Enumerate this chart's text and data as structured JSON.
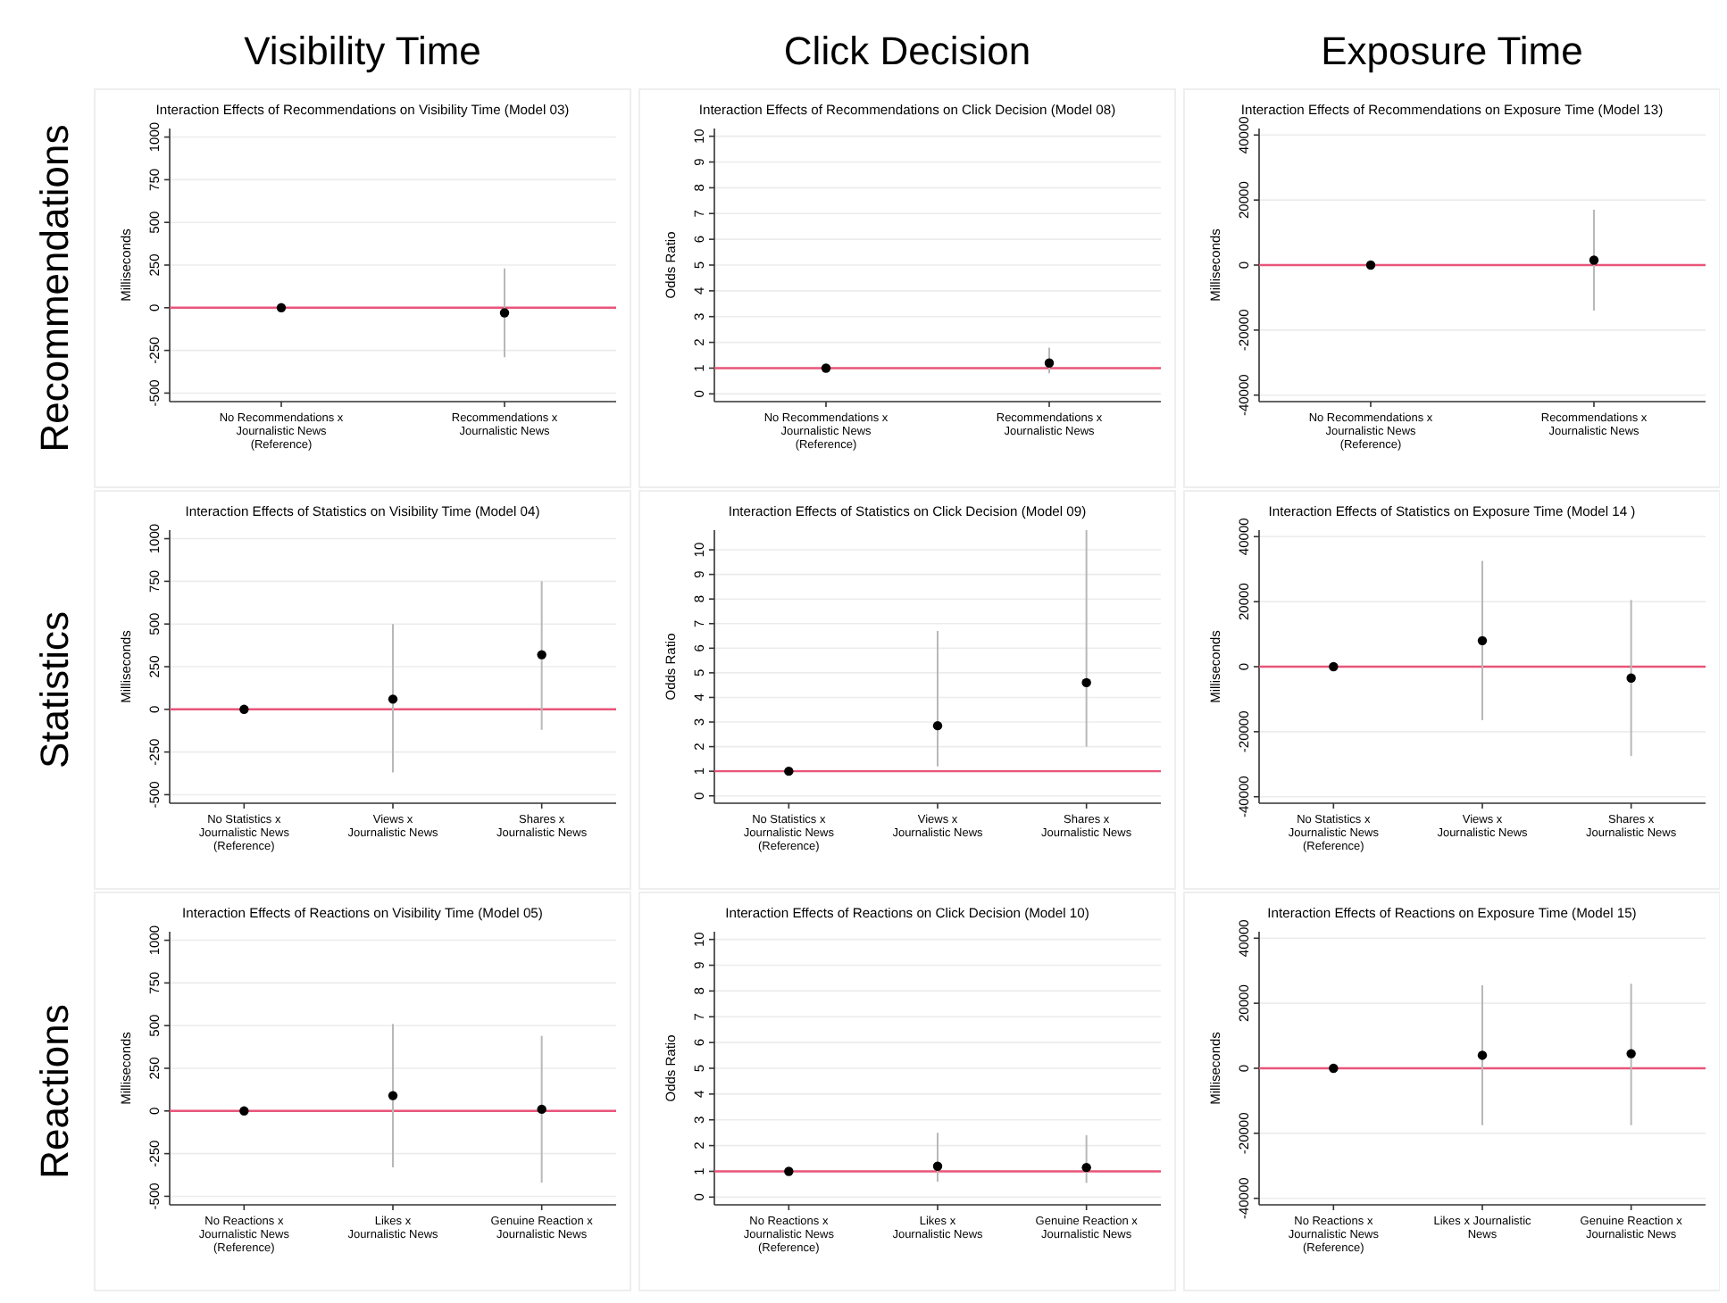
{
  "chart_data": [
    {
      "type": "other",
      "annotations": [
        "Visibility Time",
        "Click Decision",
        "Exposure Time",
        "Recommendations",
        "Statistics",
        "Reactions"
      ]
    },
    {
      "type": "scatter",
      "title": "Interaction Effects of Recommendations on Visibility Time (Model 03)",
      "ylabel": "Milliseconds",
      "categories": [
        "No Recommendations x\nJournalistic News\n(Reference)",
        "Recommendations x\nJournalistic News"
      ],
      "values": [
        0,
        -30
      ],
      "errors": [
        null,
        [
          -290,
          230
        ]
      ],
      "color": "#000000",
      "ylim": [
        -550,
        1050
      ],
      "yticks": [
        -500,
        -250,
        0,
        250,
        500,
        750,
        1000
      ],
      "grid": "y",
      "marker": "circle",
      "ref_lines": [
        {
          "axis": "y",
          "value": 0,
          "color": "#e8557a"
        }
      ]
    },
    {
      "type": "scatter",
      "title": "Interaction Effects of Recommendations on Click Decision (Model 08)",
      "ylabel": "Odds Ratio",
      "categories": [
        "No Recommendations x\nJournalistic News\n(Reference)",
        "Recommendations x\nJournalistic News"
      ],
      "values": [
        1,
        1.2
      ],
      "errors": [
        null,
        [
          0.8,
          1.8
        ]
      ],
      "color": "#000000",
      "ylim": [
        -0.3,
        10.3
      ],
      "yticks": [
        0,
        1,
        2,
        3,
        4,
        5,
        6,
        7,
        8,
        9,
        10
      ],
      "grid": "y",
      "marker": "circle",
      "ref_lines": [
        {
          "axis": "y",
          "value": 1,
          "color": "#e8557a"
        }
      ]
    },
    {
      "type": "scatter",
      "title": "Interaction Effects of Recommendations on Exposure Time (Model 13)",
      "ylabel": "Milliseconds",
      "categories": [
        "No Recommendations x\nJournalistic News\n(Reference)",
        "Recommendations x\nJournalistic News"
      ],
      "values": [
        0,
        1500
      ],
      "errors": [
        null,
        [
          -14000,
          17000
        ]
      ],
      "color": "#000000",
      "ylim": [
        -42000,
        42000
      ],
      "yticks": [
        -40000,
        -20000,
        0,
        20000,
        40000
      ],
      "grid": "y",
      "marker": "circle",
      "ref_lines": [
        {
          "axis": "y",
          "value": 0,
          "color": "#e8557a"
        }
      ]
    },
    {
      "type": "scatter",
      "title": "Interaction Effects of Statistics on Visibility Time (Model 04)",
      "ylabel": "Milliseconds",
      "categories": [
        "No Statistics x\nJournalistic News\n(Reference)",
        "Views x\nJournalistic News",
        "Shares x\nJournalistic News"
      ],
      "values": [
        0,
        60,
        320
      ],
      "errors": [
        null,
        [
          -370,
          500
        ],
        [
          -120,
          750
        ]
      ],
      "color": "#000000",
      "ylim": [
        -550,
        1050
      ],
      "yticks": [
        -500,
        -250,
        0,
        250,
        500,
        750,
        1000
      ],
      "grid": "y",
      "marker": "circle",
      "ref_lines": [
        {
          "axis": "y",
          "value": 0,
          "color": "#e8557a"
        }
      ]
    },
    {
      "type": "scatter",
      "title": "Interaction Effects of Statistics on Click Decision (Model 09)",
      "ylabel": "Odds Ratio",
      "categories": [
        "No Statistics x\nJournalistic News\n(Reference)",
        "Views x\nJournalistic News",
        "Shares x\nJournalistic News"
      ],
      "values": [
        1,
        2.85,
        4.6
      ],
      "errors": [
        null,
        [
          1.2,
          6.7
        ],
        [
          2.0,
          10.8
        ]
      ],
      "color": "#000000",
      "ylim": [
        -0.3,
        10.8
      ],
      "yticks": [
        0,
        1,
        2,
        3,
        4,
        5,
        6,
        7,
        8,
        9,
        10
      ],
      "grid": "y",
      "marker": "circle",
      "ref_lines": [
        {
          "axis": "y",
          "value": 1,
          "color": "#e8557a"
        }
      ]
    },
    {
      "type": "scatter",
      "title": "Interaction Effects of Statistics on Exposure Time (Model 14 )",
      "ylabel": "Milliseconds",
      "categories": [
        "No Statistics x\nJournalistic News\n(Reference)",
        "Views x\nJournalistic News",
        "Shares x\nJournalistic News"
      ],
      "values": [
        0,
        8000,
        -3500
      ],
      "errors": [
        null,
        [
          -16500,
          32500
        ],
        [
          -27500,
          20500
        ]
      ],
      "color": "#000000",
      "ylim": [
        -42000,
        42000
      ],
      "yticks": [
        -40000,
        -20000,
        0,
        20000,
        40000
      ],
      "grid": "y",
      "marker": "circle",
      "ref_lines": [
        {
          "axis": "y",
          "value": 0,
          "color": "#e8557a"
        }
      ]
    },
    {
      "type": "scatter",
      "title": "Interaction Effects of Reactions on Visibility Time (Model 05)",
      "ylabel": "Milliseconds",
      "categories": [
        "No Reactions x\nJournalistic News\n(Reference)",
        "Likes x\nJournalistic News",
        "Genuine Reaction x\nJournalistic News"
      ],
      "values": [
        0,
        90,
        10
      ],
      "errors": [
        null,
        [
          -330,
          510
        ],
        [
          -420,
          440
        ]
      ],
      "color": "#000000",
      "ylim": [
        -550,
        1050
      ],
      "yticks": [
        -500,
        -250,
        0,
        250,
        500,
        750,
        1000
      ],
      "grid": "y",
      "marker": "circle",
      "ref_lines": [
        {
          "axis": "y",
          "value": 0,
          "color": "#e8557a"
        }
      ]
    },
    {
      "type": "scatter",
      "title": "Interaction Effects of Reactions on Click Decision (Model 10)",
      "ylabel": "Odds Ratio",
      "categories": [
        "No Reactions x\nJournalistic News\n(Reference)",
        "Likes x\nJournalistic News",
        "Genuine Reaction x\nJournalistic News"
      ],
      "values": [
        1,
        1.2,
        1.15
      ],
      "errors": [
        null,
        [
          0.6,
          2.5
        ],
        [
          0.55,
          2.4
        ]
      ],
      "color": "#000000",
      "ylim": [
        -0.3,
        10.3
      ],
      "yticks": [
        0,
        1,
        2,
        3,
        4,
        5,
        6,
        7,
        8,
        9,
        10
      ],
      "grid": "y",
      "marker": "circle",
      "ref_lines": [
        {
          "axis": "y",
          "value": 1,
          "color": "#e8557a"
        }
      ]
    },
    {
      "type": "scatter",
      "title": "Interaction Effects of Reactions on Exposure Time (Model 15)",
      "ylabel": "Milliseconds",
      "categories": [
        "No Reactions x\nJournalistic News\n(Reference)",
        "Likes x Journalistic\nNews",
        "Genuine Reaction x\nJournalistic News"
      ],
      "values": [
        0,
        4000,
        4500
      ],
      "errors": [
        null,
        [
          -17500,
          25500
        ],
        [
          -17500,
          26000
        ]
      ],
      "color": "#000000",
      "ylim": [
        -42000,
        42000
      ],
      "yticks": [
        -40000,
        -20000,
        0,
        20000,
        40000
      ],
      "grid": "y",
      "marker": "circle",
      "ref_lines": [
        {
          "axis": "y",
          "value": 0,
          "color": "#e8557a"
        }
      ]
    }
  ]
}
